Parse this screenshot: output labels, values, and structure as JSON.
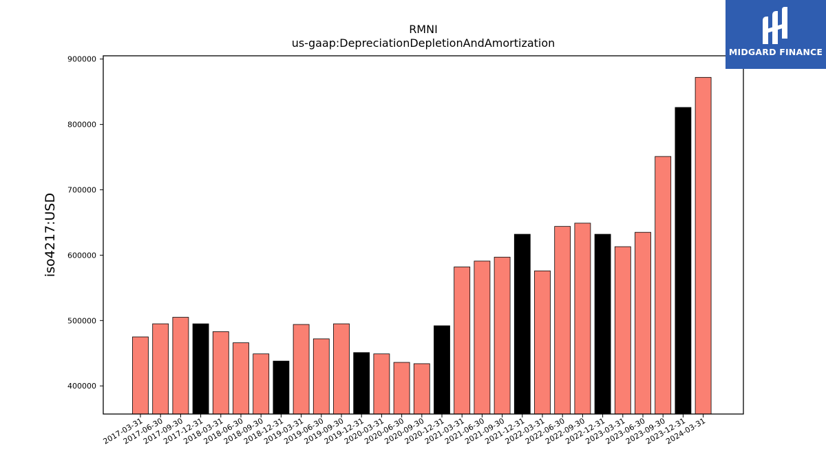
{
  "chart_data": {
    "type": "bar",
    "title": "RMNI",
    "subtitle": "us-gaap:DepreciationDepletionAndAmortization",
    "xlabel": "",
    "ylabel": "iso4217:USD",
    "ylim": [
      357000,
      905000
    ],
    "yticks": [
      400000,
      500000,
      600000,
      700000,
      800000,
      900000
    ],
    "grid": false,
    "colors": {
      "default": "#fa8072",
      "year_end": "#000000",
      "edge": "#000000"
    },
    "categories": [
      "2017-03-31",
      "2017-06-30",
      "2017-09-30",
      "2017-12-31",
      "2018-03-31",
      "2018-06-30",
      "2018-09-30",
      "2018-12-31",
      "2019-03-31",
      "2019-06-30",
      "2019-09-30",
      "2019-12-31",
      "2020-03-31",
      "2020-06-30",
      "2020-09-30",
      "2020-12-31",
      "2021-03-31",
      "2021-06-30",
      "2021-09-30",
      "2021-12-31",
      "2022-03-31",
      "2022-06-30",
      "2022-09-30",
      "2022-12-31",
      "2023-03-31",
      "2023-06-30",
      "2023-09-30",
      "2023-12-31",
      "2024-03-31"
    ],
    "values": [
      475000,
      495000,
      505000,
      495000,
      483000,
      466000,
      449000,
      438000,
      494000,
      472000,
      495000,
      451000,
      449000,
      436000,
      434000,
      492000,
      582000,
      591000,
      597000,
      632000,
      576000,
      644000,
      649000,
      632000,
      613000,
      635000,
      751000,
      826000,
      872000
    ],
    "highlighted": [
      false,
      false,
      false,
      true,
      false,
      false,
      false,
      true,
      false,
      false,
      false,
      true,
      false,
      false,
      false,
      true,
      false,
      false,
      false,
      true,
      false,
      false,
      false,
      true,
      false,
      false,
      false,
      true,
      false
    ]
  },
  "logo": {
    "text": "MIDGARD FINANCE",
    "icon": "midgard-logo-icon"
  }
}
